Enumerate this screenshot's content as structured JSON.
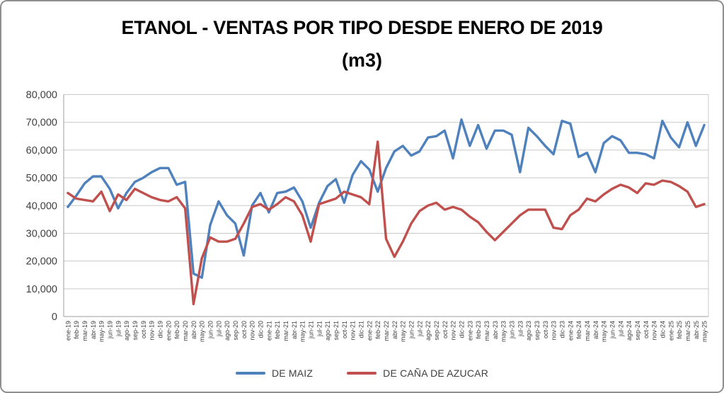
{
  "title": "ETANOL - VENTAS POR TIPO DESDE ENERO DE 2019",
  "subtitle": "(m3)",
  "legend": [
    {
      "label": "DE MAIZ",
      "color": "#4F81BD"
    },
    {
      "label": "DE CAÑA DE AZUCAR",
      "color": "#C0504D"
    }
  ],
  "axis": {
    "y_tick_labels": [
      "0",
      "10,000",
      "20,000",
      "30,000",
      "40,000",
      "50,000",
      "60,000",
      "70,000",
      "80,000"
    ]
  },
  "colors": {
    "gridline": "#c9c9c9",
    "axis_line": "#9d9d9d",
    "tick_text": "#404040"
  },
  "chart_data": {
    "type": "line",
    "title": "ETANOL - VENTAS POR TIPO DESDE ENERO DE 2019 (m3)",
    "ylim": [
      0,
      80000
    ],
    "y_step": 10000,
    "grid": true,
    "legend_position": "bottom",
    "categories": [
      "ene-19",
      "feb-19",
      "mar-19",
      "abr-19",
      "may-19",
      "jun-19",
      "jul-19",
      "ago-19",
      "sep-19",
      "oct-19",
      "nov-19",
      "dic-19",
      "ene-20",
      "feb-20",
      "mar-20",
      "abr-20",
      "may-20",
      "jun-20",
      "jul-20",
      "ago-20",
      "sep-20",
      "oct-20",
      "nov-20",
      "dic-20",
      "ene-21",
      "feb-21",
      "mar-21",
      "abr-21",
      "may-21",
      "jun-21",
      "jul-21",
      "ago-21",
      "sep-21",
      "oct-21",
      "nov-21",
      "dic-21",
      "ene-22",
      "feb-22",
      "mar-22",
      "abr-22",
      "may-22",
      "jun-22",
      "jul-22",
      "ago-22",
      "sep-22",
      "oct-22",
      "nov-22",
      "dic-22",
      "ene-23",
      "feb-23",
      "mar-23",
      "abr-23",
      "may-23",
      "jun-23",
      "jul-23",
      "ago-23",
      "sep-23",
      "oct-23",
      "nov-23",
      "dic-23",
      "ene-24",
      "feb-24",
      "mar-24",
      "abr-24",
      "may-24",
      "jun-24",
      "jul-24",
      "ago-24",
      "sep-24",
      "oct-24",
      "nov-24",
      "dic-24",
      "ene-25",
      "feb-25",
      "mar-25",
      "abr-25",
      "may-25"
    ],
    "series": [
      {
        "name": "DE MAIZ",
        "color": "#4F81BD",
        "values": [
          39500,
          43500,
          48000,
          50500,
          50500,
          46000,
          39000,
          44500,
          48500,
          50000,
          52000,
          53500,
          53500,
          47500,
          48500,
          15500,
          14000,
          33000,
          41500,
          36500,
          33500,
          22000,
          40000,
          44500,
          37500,
          44500,
          45000,
          46500,
          41500,
          32000,
          41000,
          47000,
          49500,
          41000,
          51000,
          56000,
          53000,
          45000,
          53500,
          59500,
          61500,
          58000,
          59500,
          64500,
          65000,
          67000,
          57000,
          71000,
          61500,
          69000,
          60500,
          67000,
          67000,
          65500,
          52000,
          68000,
          65000,
          61500,
          58500,
          70500,
          69500,
          57500,
          59000,
          52000,
          62500,
          65000,
          63500,
          59000,
          59000,
          58500,
          57000,
          70500,
          64500,
          61000,
          70000,
          61500,
          69000
        ]
      },
      {
        "name": "DE CAÑA DE AZUCAR",
        "color": "#C0504D",
        "values": [
          44500,
          42500,
          42000,
          41500,
          45000,
          38000,
          44000,
          42000,
          46000,
          44500,
          43000,
          42000,
          41500,
          43000,
          39000,
          4500,
          21000,
          28500,
          27000,
          27000,
          28000,
          33500,
          39500,
          40500,
          38500,
          40500,
          43000,
          41500,
          36500,
          27000,
          40500,
          41500,
          42500,
          45000,
          44000,
          43000,
          40500,
          63000,
          28000,
          21500,
          27000,
          33500,
          38000,
          40000,
          41000,
          38500,
          39500,
          38500,
          36000,
          34000,
          30500,
          27500,
          30500,
          33500,
          36500,
          38500,
          38500,
          38500,
          32000,
          31500,
          36500,
          38500,
          42500,
          41500,
          44000,
          46000,
          47500,
          46500,
          44500,
          48000,
          47500,
          49000,
          48500,
          47000,
          45000,
          39500,
          40500
        ]
      }
    ]
  }
}
